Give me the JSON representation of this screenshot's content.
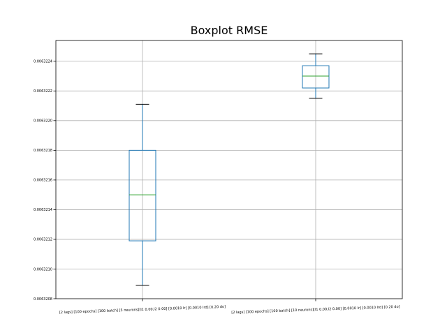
{
  "chart_data": {
    "type": "boxplot",
    "title": "Boxplot RMSE",
    "xlabel": "",
    "ylabel": "",
    "categories": [
      "[2 lags] [100 epochs] [100 batch] [5 neurons][l1 0.00,l2 0.00] [0.0010 lr] [0.0010 lrd] [0.20 do]",
      "[2 lags] [100 epochs] [100 batch] [10 neurons][l1 0.00,l2 0.00] [0.0010 lr] [0.0010 lrd] [0.20 do]"
    ],
    "boxes": [
      {
        "whislo": 0.00632089,
        "q1": 0.00632119,
        "med": 0.0063215,
        "q3": 0.0063218,
        "whishi": 0.00632211
      },
      {
        "whislo": 0.00632215,
        "q1": 0.00632222,
        "med": 0.0063223,
        "q3": 0.00632237,
        "whishi": 0.00632245
      }
    ],
    "ylim": [
      0.0063208,
      0.00632254
    ],
    "yticks": [
      0.0063208,
      0.006321,
      0.0063212,
      0.0063214,
      0.0063216,
      0.0063218,
      0.006322,
      0.0063222,
      0.0063224
    ],
    "ytick_labels": [
      "0.0063208",
      "0.0063210",
      "0.0063212",
      "0.0063214",
      "0.0063216",
      "0.0063218",
      "0.0063220",
      "0.0063222",
      "0.0063224"
    ],
    "grid": true,
    "colors": {
      "box": "#1f77b4",
      "median": "#2ca02c",
      "cap": "#000000",
      "grid": "#b0b0b0"
    }
  }
}
